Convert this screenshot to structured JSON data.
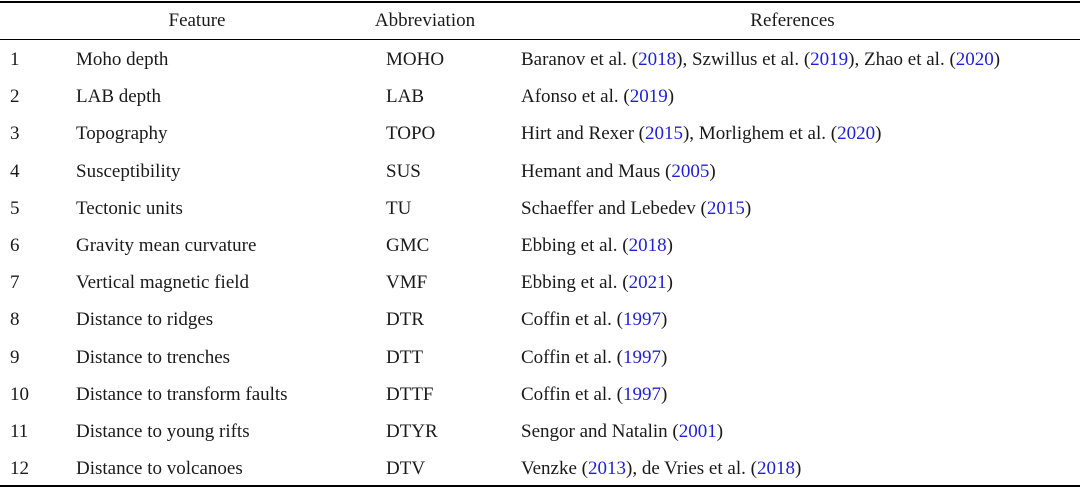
{
  "headers": {
    "feature": "Feature",
    "abbreviation": "Abbreviation",
    "references": "References"
  },
  "rows": [
    {
      "num": "1",
      "feature": "Moho depth",
      "abbr": "MOHO",
      "refs": [
        [
          "Baranov et al. (",
          "2018",
          "), "
        ],
        [
          "Szwillus et al. (",
          "2019",
          "), "
        ],
        [
          "Zhao et al. (",
          "2020",
          ")"
        ]
      ]
    },
    {
      "num": "2",
      "feature": "LAB depth",
      "abbr": "LAB",
      "refs": [
        [
          "Afonso et al. (",
          "2019",
          ")"
        ]
      ]
    },
    {
      "num": "3",
      "feature": "Topography",
      "abbr": "TOPO",
      "refs": [
        [
          "Hirt and Rexer (",
          "2015",
          "), "
        ],
        [
          "Morlighem et al. (",
          "2020",
          ")"
        ]
      ]
    },
    {
      "num": "4",
      "feature": "Susceptibility",
      "abbr": "SUS",
      "refs": [
        [
          "Hemant and Maus (",
          "2005",
          ")"
        ]
      ]
    },
    {
      "num": "5",
      "feature": "Tectonic units",
      "abbr": "TU",
      "refs": [
        [
          "Schaeffer and Lebedev (",
          "2015",
          ")"
        ]
      ]
    },
    {
      "num": "6",
      "feature": "Gravity mean curvature",
      "abbr": "GMC",
      "refs": [
        [
          "Ebbing et al. (",
          "2018",
          ")"
        ]
      ]
    },
    {
      "num": "7",
      "feature": "Vertical magnetic field",
      "abbr": "VMF",
      "refs": [
        [
          "Ebbing et al. (",
          "2021",
          ")"
        ]
      ]
    },
    {
      "num": "8",
      "feature": "Distance to ridges",
      "abbr": "DTR",
      "refs": [
        [
          "Coffin et al. (",
          "1997",
          ")"
        ]
      ]
    },
    {
      "num": "9",
      "feature": "Distance to trenches",
      "abbr": "DTT",
      "refs": [
        [
          "Coffin et al. (",
          "1997",
          ")"
        ]
      ]
    },
    {
      "num": "10",
      "feature": "Distance to transform faults",
      "abbr": "DTTF",
      "refs": [
        [
          "Coffin et al. (",
          "1997",
          ")"
        ]
      ]
    },
    {
      "num": "11",
      "feature": "Distance to young rifts",
      "abbr": "DTYR",
      "refs": [
        [
          "Sengor and Natalin (",
          "2001",
          ")"
        ]
      ]
    },
    {
      "num": "12",
      "feature": "Distance to volcanoes",
      "abbr": "DTV",
      "refs": [
        [
          "Venzke (",
          "2013",
          "), "
        ],
        [
          "de Vries et al. (",
          "2018",
          ")"
        ]
      ]
    }
  ],
  "colors": {
    "text": "#1a1a1a",
    "citation_link": "#1f1fd6",
    "rule": "#000000"
  }
}
